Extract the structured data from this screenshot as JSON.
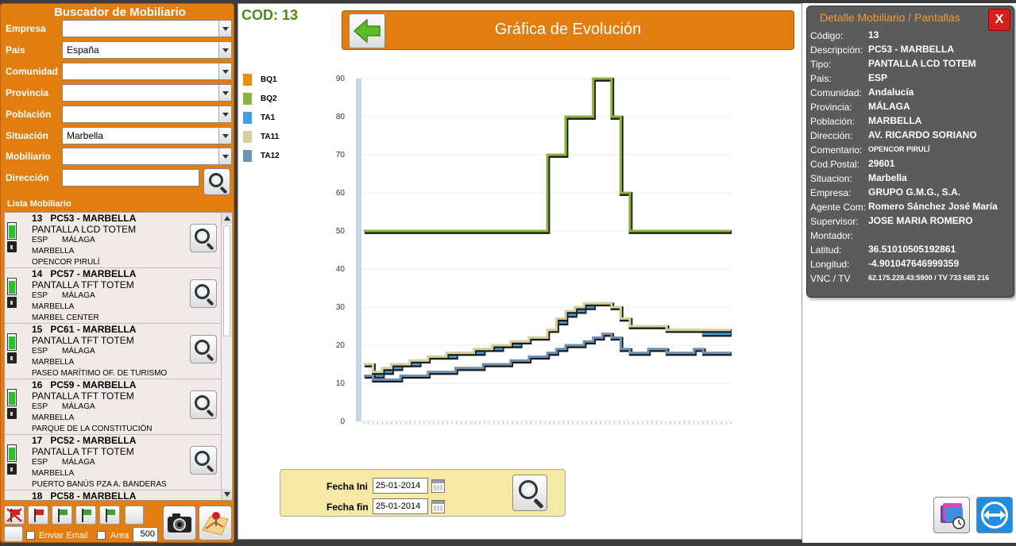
{
  "left": {
    "title": "Buscador de Mobiliario",
    "filters": [
      {
        "label": "Empresa",
        "value": ""
      },
      {
        "label": "Pais",
        "value": "España"
      },
      {
        "label": "Comunidad",
        "value": ""
      },
      {
        "label": "Provincia",
        "value": ""
      },
      {
        "label": "Población",
        "value": ""
      },
      {
        "label": "Situación",
        "value": "Marbella"
      },
      {
        "label": "Mobiliario",
        "value": ""
      }
    ],
    "direccion_label": "Dirección",
    "direccion_value": "",
    "list_label": "Lista Mobiliario",
    "items": [
      {
        "id": "13",
        "code": "PC53 - MARBELLA",
        "type": "PANTALLA LCD TOTEM",
        "country": "ESP",
        "province": "MÁLAGA",
        "city": "MARBELLA",
        "address": "OPENCOR PIRULÍ"
      },
      {
        "id": "14",
        "code": "PC57 - MARBELLA",
        "type": "PANTALLA TFT TOTEM",
        "country": "ESP",
        "province": "MÁLAGA",
        "city": "MARBELLA",
        "address": "MARBEL CENTER"
      },
      {
        "id": "15",
        "code": "PC61 - MARBELLA",
        "type": "PANTALLA TFT TOTEM",
        "country": "ESP",
        "province": "MÁLAGA",
        "city": "MARBELLA",
        "address": "PASEO MARÍTIMO OF. DE TURISMO"
      },
      {
        "id": "16",
        "code": "PC59 - MARBELLA",
        "type": "PANTALLA TFT TOTEM",
        "country": "ESP",
        "province": "MÁLAGA",
        "city": "MARBELLA",
        "address": "PARQUE DE LA CONSTITUCIÓN"
      },
      {
        "id": "17",
        "code": "PC52 - MARBELLA",
        "type": "PANTALLA TFT TOTEM",
        "country": "ESP",
        "province": "MÁLAGA",
        "city": "MARBELLA",
        "address": "PUERTO BANÚS PZA  A. BANDERAS"
      },
      {
        "id": "18",
        "code": "PC58 - MARBELLA",
        "type": "",
        "country": "",
        "province": "",
        "city": "",
        "address": ""
      }
    ],
    "email_label": "Enviar Email",
    "area_label": "Area",
    "area_value": "500",
    "flag_colors": [
      "#d62020",
      "#d62020",
      "#3aa52a",
      "#3aa52a",
      "#3aa52a"
    ],
    "flag_icons": [
      "flag-cross-icon",
      "flag-red-icon",
      "flag-green-icon",
      "flag-green-icon",
      "flag-green-icon"
    ]
  },
  "center": {
    "cod": "COD: 13",
    "title": "Gráfica de Evolución",
    "fecha_ini_label": "Fecha Ini",
    "fecha_ini": "25-01-2014",
    "fecha_fin_label": "Fecha fin",
    "fecha_fin": "25-01-2014"
  },
  "chart_data": {
    "type": "line",
    "ylim": [
      0,
      90
    ],
    "yticks": [
      0,
      10,
      20,
      30,
      40,
      50,
      60,
      70,
      80,
      90
    ],
    "legend": "left",
    "series": [
      {
        "name": "BQ1",
        "color": "#e8900c",
        "values": [
          50,
          50,
          50,
          50,
          50,
          50,
          50,
          50,
          50,
          50,
          50,
          50,
          50,
          50,
          50,
          50,
          50,
          50,
          50,
          50,
          70,
          70,
          80,
          80,
          80,
          90,
          90,
          80,
          60,
          50,
          50,
          50,
          50,
          50,
          50,
          50,
          50,
          50,
          50,
          50,
          50
        ]
      },
      {
        "name": "BQ2",
        "color": "#8bb43a",
        "values": [
          50,
          50,
          50,
          50,
          50,
          50,
          50,
          50,
          50,
          50,
          50,
          50,
          50,
          50,
          50,
          50,
          50,
          50,
          50,
          50,
          70,
          70,
          80,
          80,
          80,
          90,
          90,
          80,
          60,
          50,
          50,
          50,
          50,
          50,
          50,
          50,
          50,
          50,
          50,
          50,
          50
        ]
      },
      {
        "name": "TA1",
        "color": "#3f9fe0",
        "values": [
          15,
          12,
          13,
          14,
          15,
          15,
          16,
          17,
          17,
          17,
          18,
          18,
          18,
          19,
          19,
          20,
          20,
          21,
          22,
          22,
          24,
          26,
          28,
          29,
          30,
          31,
          31,
          30,
          27,
          25,
          25,
          25,
          25,
          24,
          24,
          24,
          24,
          23,
          23,
          23,
          23
        ]
      },
      {
        "name": "TA11",
        "color": "#d6d19a",
        "values": [
          15,
          13,
          14,
          15,
          15,
          16,
          16,
          17,
          17,
          18,
          18,
          18,
          19,
          19,
          20,
          20,
          21,
          21,
          22,
          22,
          24,
          27,
          29,
          30,
          31,
          31,
          31,
          30,
          27,
          25,
          25,
          25,
          25,
          24,
          24,
          24,
          24,
          24,
          24,
          24,
          24
        ]
      },
      {
        "name": "TA12",
        "color": "#6e93b4",
        "values": [
          12,
          11,
          11,
          11,
          12,
          12,
          12,
          13,
          13,
          13,
          14,
          14,
          14,
          15,
          15,
          15,
          16,
          16,
          17,
          17,
          18,
          19,
          20,
          20,
          21,
          22,
          23,
          22,
          19,
          18,
          18,
          19,
          19,
          18,
          18,
          18,
          19,
          18,
          18,
          18,
          18
        ]
      }
    ]
  },
  "detail": {
    "title": "Detalle Mobiliario / Pantallas",
    "close": "X",
    "rows": [
      {
        "k": "Código:",
        "v": "13"
      },
      {
        "k": "Descripción:",
        "v": "PC53 - MARBELLA"
      },
      {
        "k": "Tipo:",
        "v": "PANTALLA LCD TOTEM"
      },
      {
        "k": "Pais:",
        "v": "ESP"
      },
      {
        "k": "Comunidad:",
        "v": "Andalucía"
      },
      {
        "k": "Provincia:",
        "v": "MÁLAGA"
      },
      {
        "k": "Población:",
        "v": "MARBELLA"
      },
      {
        "k": "Dirección:",
        "v": "AV. RICARDO SORIANO"
      },
      {
        "k": "Comentario:",
        "v": "OPENCOR PIRULÍ"
      },
      {
        "k": "Cod.Postal:",
        "v": "29601"
      },
      {
        "k": "Situacion:",
        "v": "Marbella"
      },
      {
        "k": "Empresa:",
        "v": "GRUPO G.M.G., S.A."
      },
      {
        "k": "Agente Com:",
        "v": "Romero Sánchez  José María"
      },
      {
        "k": "Supervisor:",
        "v": "JOSE MARIA ROMERO"
      },
      {
        "k": "Montador:",
        "v": ""
      },
      {
        "k": "Latitud:",
        "v": "36.51010505192861"
      },
      {
        "k": "Longitud:",
        "v": "-4.901047646999359"
      },
      {
        "k": "VNC / TV",
        "v": "62.175.228.43:5900 / TV 733 685 216"
      }
    ]
  }
}
